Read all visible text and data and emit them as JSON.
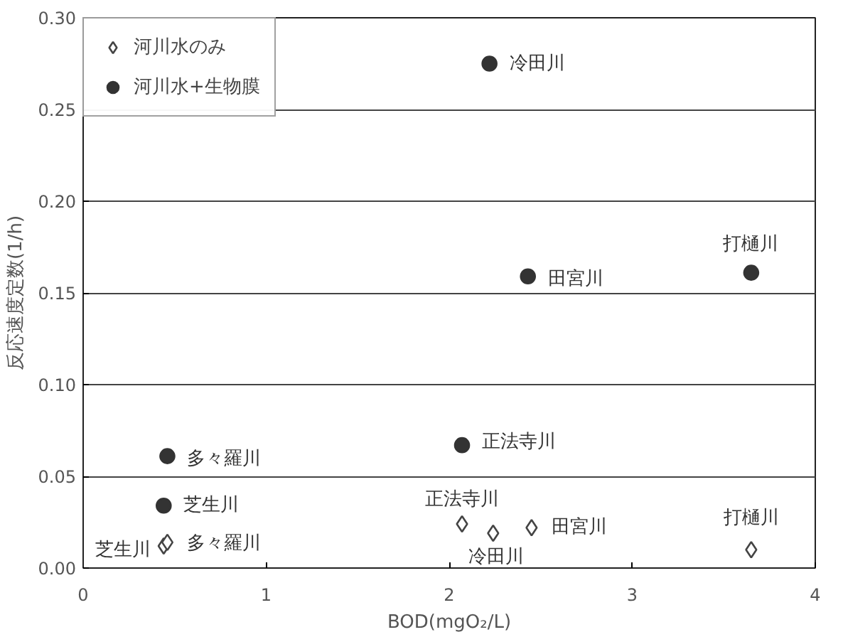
{
  "chart_data": {
    "type": "scatter",
    "xlabel": "BOD(mgO₂/L)",
    "ylabel": "反応速度定数(1/h)",
    "xlim": [
      0,
      4
    ],
    "ylim": [
      0,
      0.3
    ],
    "xticks": [
      0,
      1,
      2,
      3,
      4
    ],
    "yticks": [
      {
        "value": 0,
        "label": "0.00"
      },
      {
        "value": 0.05,
        "label": "0.05"
      },
      {
        "value": 0.1,
        "label": "0.10"
      },
      {
        "value": 0.15,
        "label": "0.15"
      },
      {
        "value": 0.2,
        "label": "0.20"
      },
      {
        "value": 0.25,
        "label": "0.25"
      },
      {
        "value": 0.3,
        "label": "0.30"
      }
    ],
    "grid": "y",
    "legend": "top left",
    "series": [
      {
        "name": "河川水のみ",
        "color": "#444444",
        "marker": "diamond",
        "x": [
          0.44,
          0.46,
          2.07,
          2.24,
          2.45,
          3.65
        ],
        "values": [
          0.012,
          0.014,
          0.024,
          0.019,
          0.022,
          0.01
        ]
      },
      {
        "name": "河川水+生物膜",
        "color": "#333333",
        "marker": "circle",
        "x": [
          2.22,
          2.43,
          3.65,
          0.46,
          2.07,
          0.44
        ],
        "values": [
          0.275,
          0.159,
          0.161,
          0.061,
          0.067,
          0.034
        ]
      }
    ],
    "annotations": [
      {
        "text": "冷田川",
        "x": 2.22,
        "y": 0.275
      },
      {
        "text": "田宮川",
        "x": 2.43,
        "y": 0.159
      },
      {
        "text": "打樋川",
        "x": 3.65,
        "y": 0.161
      },
      {
        "text": "多々羅川",
        "x": 0.46,
        "y": 0.061
      },
      {
        "text": "正法寺川",
        "x": 2.07,
        "y": 0.067
      },
      {
        "text": "芝生川",
        "x": 0.44,
        "y": 0.034
      },
      {
        "text": "多々羅川",
        "x": 0.46,
        "y": 0.014
      },
      {
        "text": "芝生川",
        "x": 0.44,
        "y": 0.012
      },
      {
        "text": "正法寺川",
        "x": 2.07,
        "y": 0.024
      },
      {
        "text": "冷田川",
        "x": 2.24,
        "y": 0.019
      },
      {
        "text": "田宮川",
        "x": 2.45,
        "y": 0.022
      },
      {
        "text": "打樋川",
        "x": 3.65,
        "y": 0.01
      }
    ]
  }
}
